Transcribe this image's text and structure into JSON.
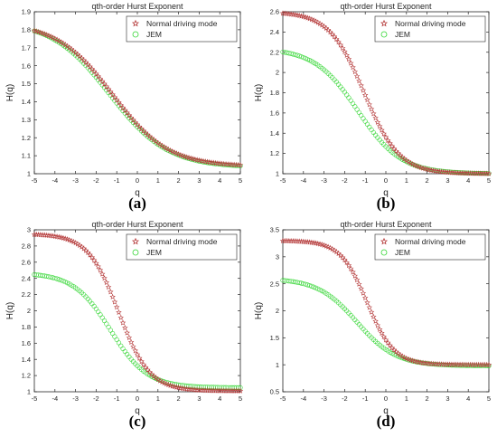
{
  "figure": {
    "panels": [
      {
        "caption": "(a)"
      },
      {
        "caption": "(b)"
      },
      {
        "caption": "(c)"
      },
      {
        "caption": "(d)"
      }
    ]
  },
  "colors": {
    "normal": "#b53a3a",
    "jem": "#33d633",
    "axis": "#262626",
    "text": "#262626"
  },
  "chart_data": [
    {
      "type": "scatter",
      "title": "qth-order Hurst Exponent",
      "xlabel": "q",
      "ylabel": "H(q)",
      "xlim": [
        -5,
        5
      ],
      "ylim": [
        1,
        1.9
      ],
      "xticks": [
        -5,
        -4,
        -3,
        -2,
        -1,
        0,
        1,
        2,
        3,
        4,
        5
      ],
      "yticks": [
        1,
        1.1,
        1.2,
        1.3,
        1.4,
        1.5,
        1.6,
        1.7,
        1.8,
        1.9
      ],
      "grid": false,
      "legend_position": "top-right",
      "series": [
        {
          "name": "Normal driving mode",
          "marker": "star",
          "curve": {
            "high": 1.84,
            "low": 1.04,
            "center": -1.2,
            "width": 1.35
          }
        },
        {
          "name": "JEM",
          "marker": "circle",
          "curve": {
            "high": 1.85,
            "low": 1.035,
            "center": -1.35,
            "width": 1.4
          }
        }
      ]
    },
    {
      "type": "scatter",
      "title": "qth-order Hurst Exponent",
      "xlabel": "q",
      "ylabel": "H(q)",
      "xlim": [
        -5,
        5
      ],
      "ylim": [
        1,
        2.6
      ],
      "xticks": [
        -5,
        -4,
        -3,
        -2,
        -1,
        0,
        1,
        2,
        3,
        4,
        5
      ],
      "yticks": [
        1,
        1.2,
        1.4,
        1.6,
        1.8,
        2,
        2.2,
        2.4,
        2.6
      ],
      "grid": false,
      "legend_position": "top-right",
      "series": [
        {
          "name": "Normal driving mode",
          "marker": "star",
          "curve": {
            "high": 2.6,
            "low": 1.0,
            "center": -1.05,
            "width": 0.85
          }
        },
        {
          "name": "JEM",
          "marker": "circle",
          "curve": {
            "high": 2.24,
            "low": 1.0,
            "center": -1.35,
            "width": 1.05
          }
        }
      ]
    },
    {
      "type": "scatter",
      "title": "qth-order Hurst Exponent",
      "xlabel": "q",
      "ylabel": "H(q)",
      "xlim": [
        -5,
        5
      ],
      "ylim": [
        1,
        3
      ],
      "xticks": [
        -5,
        -4,
        -3,
        -2,
        -1,
        0,
        1,
        2,
        3,
        4,
        5
      ],
      "yticks": [
        1,
        1.2,
        1.4,
        1.6,
        1.8,
        2,
        2.2,
        2.4,
        2.6,
        2.8,
        3
      ],
      "grid": false,
      "legend_position": "top-right",
      "series": [
        {
          "name": "Normal driving mode",
          "marker": "star",
          "curve": {
            "high": 2.95,
            "low": 1.01,
            "center": -0.9,
            "width": 0.75
          }
        },
        {
          "name": "JEM",
          "marker": "circle",
          "curve": {
            "high": 2.47,
            "low": 1.05,
            "center": -1.3,
            "width": 0.9
          }
        }
      ]
    },
    {
      "type": "scatter",
      "title": "qth-order Hurst Exponent",
      "xlabel": "q",
      "ylabel": "H(q)",
      "xlim": [
        -5,
        5
      ],
      "ylim": [
        0.5,
        3.5
      ],
      "xticks": [
        -5,
        -4,
        -3,
        -2,
        -1,
        0,
        1,
        2,
        3,
        4,
        5
      ],
      "yticks": [
        0.5,
        1,
        1.5,
        2,
        2.5,
        3,
        3.5
      ],
      "grid": false,
      "legend_position": "top-right",
      "series": [
        {
          "name": "Normal driving mode",
          "marker": "star",
          "curve": {
            "high": 3.3,
            "low": 1.0,
            "center": -0.9,
            "width": 0.65
          }
        },
        {
          "name": "JEM",
          "marker": "circle",
          "curve": {
            "high": 2.6,
            "low": 0.98,
            "center": -1.4,
            "width": 0.95
          }
        }
      ]
    }
  ]
}
